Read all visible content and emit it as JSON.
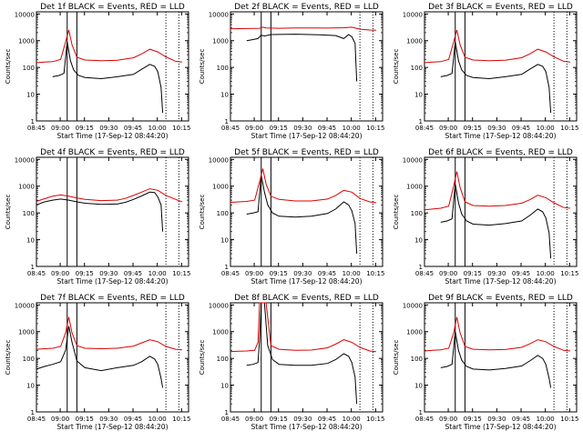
{
  "figure": {
    "ylabel": "Counts/sec",
    "xlabel": "Start Time (17-Sep-12 08:44:20)",
    "xticks": [
      "08:45",
      "09:00",
      "09:15",
      "09:30",
      "09:45",
      "10:00",
      "10:15"
    ],
    "yticks": [
      "1",
      "10",
      "100",
      "1000",
      "10000"
    ],
    "colors": {
      "events": "#000000",
      "lld": "#dd0000"
    }
  },
  "chart_data": [
    {
      "type": "line",
      "title": "Det 1f BLACK = Events, RED = LLD",
      "x_unit": "minutes after 08:44:20",
      "xlim": [
        0,
        94
      ],
      "ylim": [
        1,
        12000
      ],
      "yscale": "log",
      "vlines_solid": [
        19,
        25
      ],
      "vlines_dotted": [
        80,
        88
      ],
      "series": [
        {
          "name": "Events",
          "color": "#000000",
          "x": [
            10,
            14,
            17,
            19,
            21,
            23,
            26,
            30,
            40,
            50,
            60,
            65,
            70,
            73,
            75,
            77,
            78
          ],
          "y": [
            45,
            50,
            60,
            900,
            180,
            80,
            50,
            42,
            38,
            45,
            55,
            85,
            130,
            110,
            70,
            18,
            2
          ]
        },
        {
          "name": "LLD",
          "color": "#dd0000",
          "x": [
            0,
            5,
            10,
            15,
            18,
            20,
            22,
            25,
            30,
            40,
            50,
            60,
            65,
            70,
            75,
            80,
            86,
            90
          ],
          "y": [
            150,
            160,
            165,
            200,
            900,
            2500,
            700,
            240,
            190,
            180,
            185,
            230,
            320,
            480,
            380,
            250,
            170,
            160
          ]
        }
      ]
    },
    {
      "type": "line",
      "title": "Det 2f BLACK = Events, RED = LLD",
      "x_unit": "minutes after 08:44:20",
      "xlim": [
        0,
        94
      ],
      "ylim": [
        1,
        12000
      ],
      "yscale": "log",
      "vlines_solid": [
        19,
        25
      ],
      "vlines_dotted": [
        80,
        88
      ],
      "series": [
        {
          "name": "Events",
          "color": "#000000",
          "x": [
            10,
            14,
            17,
            19,
            21,
            25,
            40,
            55,
            65,
            70,
            73,
            75,
            77,
            78
          ],
          "y": [
            1000,
            1100,
            1200,
            1600,
            1500,
            1700,
            1750,
            1650,
            1550,
            1200,
            1700,
            1400,
            800,
            30
          ]
        },
        {
          "name": "LLD",
          "color": "#dd0000",
          "x": [
            0,
            10,
            18,
            20,
            22,
            30,
            40,
            50,
            60,
            70,
            75,
            80,
            86,
            90
          ],
          "y": [
            2800,
            2850,
            2900,
            3200,
            3000,
            2900,
            3000,
            3000,
            2950,
            3050,
            3200,
            2700,
            2500,
            2450
          ]
        }
      ]
    },
    {
      "type": "line",
      "title": "Det 3f BLACK = Events, RED = LLD",
      "x_unit": "minutes after 08:44:20",
      "xlim": [
        0,
        94
      ],
      "ylim": [
        1,
        12000
      ],
      "yscale": "log",
      "vlines_solid": [
        19,
        25
      ],
      "vlines_dotted": [
        80,
        88
      ],
      "series": [
        {
          "name": "Events",
          "color": "#000000",
          "x": [
            10,
            14,
            17,
            19,
            21,
            23,
            26,
            30,
            40,
            50,
            60,
            65,
            70,
            73,
            75,
            77,
            78
          ],
          "y": [
            45,
            50,
            60,
            900,
            180,
            80,
            50,
            42,
            38,
            45,
            55,
            85,
            130,
            110,
            70,
            18,
            2
          ]
        },
        {
          "name": "LLD",
          "color": "#dd0000",
          "x": [
            0,
            5,
            10,
            15,
            18,
            20,
            22,
            25,
            30,
            40,
            50,
            60,
            65,
            70,
            75,
            80,
            86,
            90
          ],
          "y": [
            150,
            160,
            165,
            200,
            900,
            2500,
            700,
            240,
            190,
            180,
            185,
            230,
            320,
            480,
            380,
            250,
            170,
            160
          ]
        }
      ]
    },
    {
      "type": "line",
      "title": "Det 4f BLACK = Events, RED = LLD",
      "x_unit": "minutes after 08:44:20",
      "xlim": [
        0,
        94
      ],
      "ylim": [
        1,
        12000
      ],
      "yscale": "log",
      "vlines_solid": [
        19,
        25
      ],
      "vlines_dotted": [
        80,
        88
      ],
      "series": [
        {
          "name": "Events",
          "color": "#000000",
          "x": [
            0,
            5,
            10,
            15,
            20,
            25,
            30,
            40,
            50,
            55,
            60,
            65,
            70,
            73,
            75,
            77,
            78
          ],
          "y": [
            200,
            260,
            300,
            330,
            300,
            260,
            230,
            210,
            215,
            250,
            320,
            430,
            600,
            580,
            400,
            200,
            20
          ]
        },
        {
          "name": "LLD",
          "color": "#dd0000",
          "x": [
            0,
            5,
            10,
            15,
            20,
            25,
            30,
            40,
            50,
            55,
            60,
            65,
            70,
            75,
            80,
            86,
            90
          ],
          "y": [
            270,
            340,
            420,
            470,
            420,
            360,
            320,
            290,
            300,
            350,
            450,
            600,
            800,
            700,
            450,
            320,
            260
          ]
        }
      ]
    },
    {
      "type": "line",
      "title": "Det 5f BLACK = Events, RED = LLD",
      "x_unit": "minutes after 08:44:20",
      "xlim": [
        0,
        94
      ],
      "ylim": [
        1,
        12000
      ],
      "yscale": "log",
      "vlines_solid": [
        19,
        25
      ],
      "vlines_dotted": [
        80,
        88
      ],
      "series": [
        {
          "name": "Events",
          "color": "#000000",
          "x": [
            10,
            14,
            17,
            19,
            21,
            23,
            26,
            30,
            40,
            50,
            60,
            65,
            70,
            73,
            75,
            77,
            78
          ],
          "y": [
            90,
            100,
            110,
            2500,
            600,
            200,
            100,
            75,
            70,
            75,
            95,
            140,
            260,
            200,
            120,
            40,
            3
          ]
        },
        {
          "name": "LLD",
          "color": "#dd0000",
          "x": [
            0,
            5,
            10,
            15,
            18,
            20,
            22,
            25,
            30,
            40,
            50,
            60,
            65,
            70,
            75,
            80,
            86,
            90
          ],
          "y": [
            250,
            260,
            270,
            300,
            1500,
            4500,
            1200,
            420,
            320,
            280,
            280,
            330,
            450,
            700,
            600,
            350,
            260,
            240
          ]
        }
      ]
    },
    {
      "type": "line",
      "title": "Det 6f BLACK = Events, RED = LLD",
      "x_unit": "minutes after 08:44:20",
      "xlim": [
        0,
        94
      ],
      "ylim": [
        1,
        12000
      ],
      "yscale": "log",
      "vlines_solid": [
        19,
        25
      ],
      "vlines_dotted": [
        80,
        88
      ],
      "series": [
        {
          "name": "Events",
          "color": "#000000",
          "x": [
            10,
            14,
            17,
            19,
            21,
            23,
            26,
            30,
            40,
            50,
            60,
            65,
            70,
            73,
            75,
            77,
            78
          ],
          "y": [
            45,
            50,
            60,
            1200,
            240,
            90,
            50,
            38,
            35,
            40,
            50,
            80,
            140,
            110,
            65,
            18,
            2
          ]
        },
        {
          "name": "LLD",
          "color": "#dd0000",
          "x": [
            0,
            5,
            10,
            15,
            18,
            20,
            22,
            25,
            30,
            40,
            50,
            60,
            65,
            70,
            75,
            80,
            86,
            90
          ],
          "y": [
            130,
            140,
            150,
            180,
            1000,
            3500,
            900,
            260,
            190,
            180,
            190,
            230,
            310,
            460,
            370,
            240,
            160,
            150
          ]
        }
      ]
    },
    {
      "type": "line",
      "title": "Det 7f BLACK = Events, RED = LLD",
      "x_unit": "minutes after 08:44:20",
      "xlim": [
        0,
        94
      ],
      "ylim": [
        1,
        12000
      ],
      "yscale": "log",
      "vlines_solid": [
        19,
        25
      ],
      "vlines_dotted": [
        80,
        88
      ],
      "series": [
        {
          "name": "Events",
          "color": "#000000",
          "x": [
            0,
            5,
            10,
            15,
            18,
            20,
            22,
            25,
            30,
            40,
            50,
            60,
            65,
            70,
            73,
            75,
            77,
            78
          ],
          "y": [
            40,
            50,
            60,
            75,
            200,
            1600,
            400,
            80,
            45,
            35,
            45,
            55,
            75,
            120,
            95,
            60,
            18,
            8
          ]
        },
        {
          "name": "LLD",
          "color": "#dd0000",
          "x": [
            0,
            5,
            10,
            15,
            18,
            20,
            22,
            25,
            30,
            40,
            50,
            60,
            65,
            70,
            75,
            80,
            86,
            90
          ],
          "y": [
            220,
            230,
            240,
            280,
            900,
            3500,
            900,
            300,
            240,
            230,
            240,
            290,
            380,
            500,
            420,
            280,
            220,
            210
          ]
        }
      ]
    },
    {
      "type": "line",
      "title": "Det 8f BLACK = Events, RED = LLD",
      "x_unit": "minutes after 08:44:20",
      "xlim": [
        0,
        94
      ],
      "ylim": [
        1,
        12000
      ],
      "yscale": "log",
      "vlines_solid": [
        19,
        25
      ],
      "vlines_dotted": [
        80,
        88
      ],
      "series": [
        {
          "name": "Events",
          "color": "#000000",
          "x": [
            10,
            14,
            17,
            18,
            19,
            21,
            23,
            26,
            30,
            40,
            50,
            60,
            65,
            70,
            73,
            75,
            77,
            78
          ],
          "y": [
            55,
            60,
            70,
            500,
            12000,
            12000,
            300,
            90,
            60,
            55,
            55,
            65,
            90,
            150,
            120,
            70,
            20,
            2
          ]
        },
        {
          "name": "LLD",
          "color": "#dd0000",
          "x": [
            0,
            5,
            10,
            15,
            17,
            18,
            20,
            22,
            25,
            30,
            40,
            50,
            60,
            65,
            70,
            75,
            80,
            86,
            90
          ],
          "y": [
            180,
            185,
            190,
            200,
            400,
            12000,
            12000,
            12000,
            300,
            220,
            200,
            205,
            250,
            340,
            500,
            400,
            260,
            190,
            180
          ]
        }
      ]
    },
    {
      "type": "line",
      "title": "Det 9f BLACK = Events, RED = LLD",
      "x_unit": "minutes after 08:44:20",
      "xlim": [
        0,
        94
      ],
      "ylim": [
        1,
        12000
      ],
      "yscale": "log",
      "vlines_solid": [
        19,
        25
      ],
      "vlines_dotted": [
        80,
        88
      ],
      "series": [
        {
          "name": "Events",
          "color": "#000000",
          "x": [
            10,
            14,
            17,
            19,
            21,
            23,
            26,
            30,
            40,
            50,
            60,
            65,
            70,
            73,
            75,
            77,
            78
          ],
          "y": [
            45,
            50,
            60,
            1000,
            200,
            85,
            50,
            40,
            37,
            42,
            52,
            80,
            130,
            100,
            60,
            18,
            8
          ]
        },
        {
          "name": "LLD",
          "color": "#dd0000",
          "x": [
            0,
            5,
            10,
            15,
            18,
            20,
            22,
            25,
            30,
            40,
            50,
            60,
            65,
            70,
            75,
            80,
            86,
            90
          ],
          "y": [
            190,
            200,
            210,
            240,
            900,
            3500,
            900,
            280,
            220,
            210,
            215,
            260,
            350,
            500,
            420,
            280,
            200,
            190
          ]
        }
      ]
    }
  ]
}
